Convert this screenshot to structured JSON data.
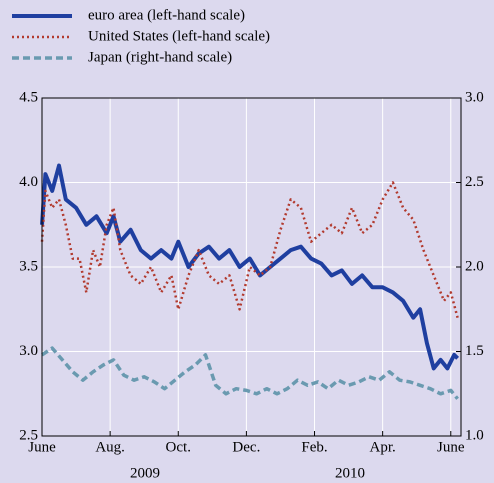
{
  "chart_data": {
    "type": "line",
    "series": [
      {
        "name": "euro area (left-hand scale)",
        "color": "#1f3fa0",
        "style": "solid",
        "axis": "y",
        "x": [
          0,
          0.1,
          0.3,
          0.5,
          0.7,
          1,
          1.3,
          1.6,
          1.9,
          2.1,
          2.3,
          2.6,
          2.9,
          3.2,
          3.5,
          3.8,
          4.0,
          4.3,
          4.6,
          4.9,
          5.2,
          5.5,
          5.8,
          6.1,
          6.4,
          6.7,
          7.0,
          7.3,
          7.6,
          7.9,
          8.2,
          8.5,
          8.8,
          9.1,
          9.4,
          9.7,
          10.0,
          10.3,
          10.6,
          10.9,
          11.1,
          11.3,
          11.5,
          11.7,
          11.9,
          12.1,
          12.2
        ],
        "values": [
          3.75,
          4.05,
          3.95,
          4.1,
          3.9,
          3.85,
          3.75,
          3.8,
          3.7,
          3.8,
          3.65,
          3.72,
          3.6,
          3.55,
          3.6,
          3.55,
          3.65,
          3.5,
          3.58,
          3.62,
          3.55,
          3.6,
          3.5,
          3.55,
          3.45,
          3.5,
          3.55,
          3.6,
          3.62,
          3.55,
          3.52,
          3.45,
          3.48,
          3.4,
          3.45,
          3.38,
          3.38,
          3.35,
          3.3,
          3.2,
          3.25,
          3.05,
          2.9,
          2.95,
          2.9,
          2.98,
          2.96
        ]
      },
      {
        "name": "United States (left-hand scale)",
        "color": "#b23a2e",
        "style": "dotted",
        "axis": "y",
        "x": [
          0,
          0.1,
          0.3,
          0.5,
          0.7,
          0.9,
          1.1,
          1.3,
          1.5,
          1.7,
          1.9,
          2.1,
          2.3,
          2.6,
          2.9,
          3.2,
          3.5,
          3.8,
          4.0,
          4.3,
          4.6,
          4.9,
          5.2,
          5.5,
          5.8,
          6.1,
          6.4,
          6.7,
          7.0,
          7.3,
          7.6,
          7.9,
          8.2,
          8.5,
          8.8,
          9.1,
          9.4,
          9.7,
          10.0,
          10.3,
          10.6,
          10.9,
          11.2,
          11.5,
          11.8,
          12.0,
          12.2
        ],
        "values": [
          3.65,
          3.95,
          3.85,
          3.9,
          3.75,
          3.55,
          3.55,
          3.35,
          3.6,
          3.5,
          3.75,
          3.85,
          3.6,
          3.45,
          3.4,
          3.5,
          3.35,
          3.45,
          3.25,
          3.45,
          3.6,
          3.45,
          3.4,
          3.45,
          3.25,
          3.5,
          3.45,
          3.5,
          3.72,
          3.9,
          3.85,
          3.65,
          3.7,
          3.75,
          3.7,
          3.85,
          3.7,
          3.75,
          3.9,
          4.0,
          3.85,
          3.78,
          3.6,
          3.45,
          3.3,
          3.35,
          3.2
        ]
      },
      {
        "name": "Japan (right-hand scale)",
        "color": "#6a9ab0",
        "style": "dashed",
        "axis": "y2",
        "x": [
          0,
          0.3,
          0.6,
          0.9,
          1.2,
          1.5,
          1.8,
          2.1,
          2.4,
          2.7,
          3.0,
          3.3,
          3.6,
          3.9,
          4.2,
          4.5,
          4.8,
          5.1,
          5.4,
          5.7,
          6.0,
          6.3,
          6.6,
          6.9,
          7.2,
          7.5,
          7.8,
          8.1,
          8.4,
          8.7,
          9.0,
          9.3,
          9.6,
          9.9,
          10.2,
          10.5,
          10.8,
          11.1,
          11.4,
          11.7,
          12.0,
          12.2
        ],
        "values": [
          1.48,
          1.52,
          1.45,
          1.38,
          1.33,
          1.38,
          1.42,
          1.45,
          1.36,
          1.33,
          1.35,
          1.32,
          1.28,
          1.33,
          1.38,
          1.42,
          1.48,
          1.3,
          1.25,
          1.28,
          1.27,
          1.25,
          1.28,
          1.25,
          1.28,
          1.33,
          1.3,
          1.32,
          1.28,
          1.33,
          1.3,
          1.32,
          1.35,
          1.33,
          1.38,
          1.33,
          1.32,
          1.3,
          1.28,
          1.25,
          1.27,
          1.22
        ]
      }
    ],
    "xlim": [
      0,
      12.3
    ],
    "xticks": [
      {
        "value": 0,
        "label": "June"
      },
      {
        "value": 2,
        "label": "Aug."
      },
      {
        "value": 4,
        "label": "Oct."
      },
      {
        "value": 6,
        "label": "Dec."
      },
      {
        "value": 8,
        "label": "Feb."
      },
      {
        "value": 10,
        "label": "Apr."
      },
      {
        "value": 12,
        "label": "June"
      }
    ],
    "year_labels": [
      "2009",
      "2010"
    ],
    "ylim": [
      2.5,
      4.5
    ],
    "yticks": [
      2.5,
      {
        "value": 3.0,
        "label": "3.0"
      },
      3.5,
      {
        "value": 4.0,
        "label": "4.0"
      },
      4.5
    ],
    "y2lim": [
      1.0,
      3.0
    ],
    "y2ticks": [
      {
        "value": 1.0,
        "label": "1.0"
      },
      1.5,
      {
        "value": 2.0,
        "label": "2.0"
      },
      2.5,
      {
        "value": 3.0,
        "label": "3.0"
      }
    ],
    "grid": true
  }
}
